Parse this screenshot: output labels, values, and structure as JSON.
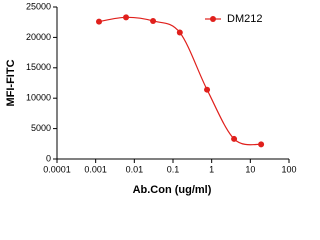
{
  "chart_data": {
    "type": "scatter",
    "x_label": "Ab.Con (ug/ml)",
    "y_label": "MFI-FITC",
    "x": [
      0.00122,
      0.0061,
      0.0305,
      0.15,
      0.76,
      3.8,
      19
    ],
    "series": [
      {
        "name": "DM212",
        "color": "#e0201c",
        "values": [
          22600,
          23300,
          22700,
          20800,
          11400,
          3300,
          2400
        ]
      }
    ],
    "xscale": "log",
    "xlim": [
      0.0001,
      100
    ],
    "xticks": [
      0.0001,
      0.001,
      0.01,
      0.1,
      1,
      10,
      100
    ],
    "ylim": [
      0,
      25000
    ],
    "yticks": [
      0,
      5000,
      10000,
      15000,
      20000,
      25000
    ],
    "legend": "top-right"
  }
}
